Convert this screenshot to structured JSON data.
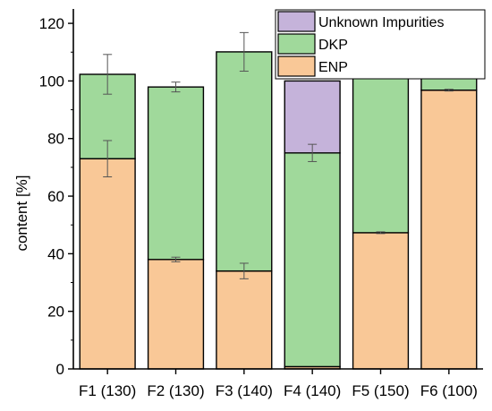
{
  "chart_data": {
    "type": "bar",
    "stacked": true,
    "categories": [
      "F1 (130)",
      "F2 (130)",
      "F3 (140)",
      "F4 (140)",
      "F5 (150)",
      "F6 (100)"
    ],
    "ylabel": "content [%]",
    "xlabel": "",
    "ylim": [
      0,
      125
    ],
    "yticks": [
      0,
      20,
      40,
      60,
      80,
      100,
      120
    ],
    "grid": false,
    "legend_position": "top-right",
    "series": [
      {
        "name": "ENP",
        "color": "#f9c897",
        "values": [
          73,
          38,
          34,
          0.8,
          47.3,
          96.8
        ],
        "error": [
          6.3,
          0.8,
          2.7,
          0,
          0.3,
          0.3
        ],
        "error_at": [
          73,
          38,
          34,
          null,
          47.3,
          96.8
        ]
      },
      {
        "name": "DKP",
        "color": "#a0d99b",
        "values": [
          29.3,
          59.9,
          76.1,
          74.2,
          56.6,
          11.4
        ],
        "error": [
          6.9,
          1.7,
          6.7,
          0,
          0.2,
          0
        ],
        "error_at": [
          102.3,
          97.9,
          110.1,
          null,
          103.9,
          null
        ]
      },
      {
        "name": "Unknown Impurities",
        "color": "#c5b3da",
        "values": [
          0,
          0,
          0,
          25,
          0,
          0
        ],
        "error": [
          0,
          0,
          0,
          3,
          0,
          0
        ],
        "error_at": [
          null,
          null,
          null,
          75,
          null,
          null
        ]
      }
    ]
  }
}
